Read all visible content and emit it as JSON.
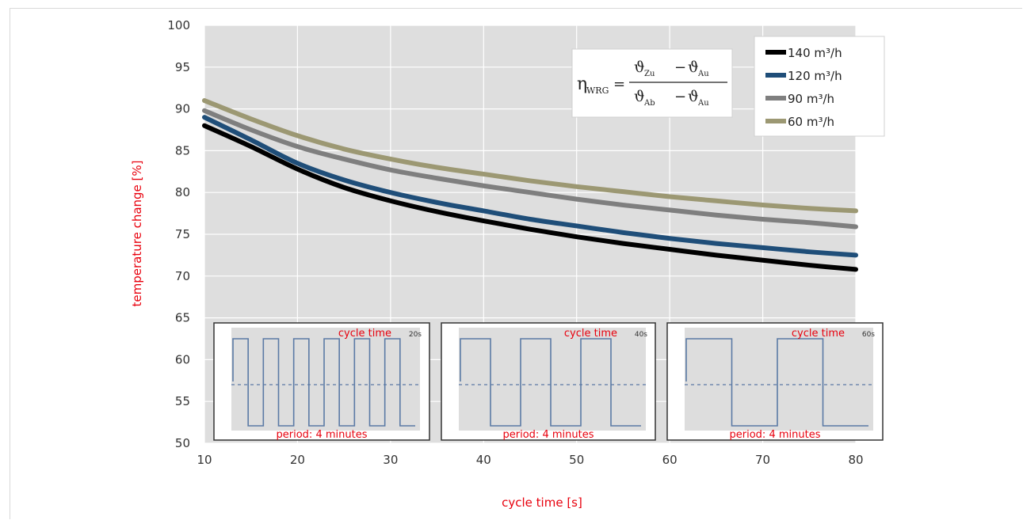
{
  "chart_data": {
    "type": "line",
    "title": "",
    "xlabel": "cycle time  [s]",
    "ylabel": "temperature change  [%]",
    "xlim": [
      10,
      80
    ],
    "ylim": [
      50,
      100
    ],
    "xticks": [
      "10",
      "20",
      "30",
      "40",
      "50",
      "60",
      "70",
      "80"
    ],
    "yticks": [
      "50",
      "55",
      "60",
      "65",
      "70",
      "75",
      "80",
      "85",
      "90",
      "95",
      "100"
    ],
    "grid": true,
    "legend_position": "top-right",
    "x": [
      10,
      15,
      20,
      25,
      30,
      35,
      40,
      45,
      50,
      55,
      60,
      65,
      70,
      75,
      80
    ],
    "series": [
      {
        "name": "140 m³/h",
        "color": "#000000",
        "values": [
          88.0,
          85.5,
          82.8,
          80.6,
          79.0,
          77.7,
          76.6,
          75.6,
          74.7,
          73.9,
          73.2,
          72.5,
          71.9,
          71.3,
          70.8
        ]
      },
      {
        "name": "120 m³/h",
        "color": "#1f4e79",
        "values": [
          89.0,
          86.3,
          83.5,
          81.5,
          80.0,
          78.8,
          77.8,
          76.8,
          76.0,
          75.2,
          74.5,
          73.9,
          73.4,
          72.9,
          72.5
        ]
      },
      {
        "name": "90 m³/h",
        "color": "#7f7f7f",
        "values": [
          89.8,
          87.5,
          85.5,
          84.0,
          82.7,
          81.7,
          80.8,
          80.0,
          79.2,
          78.5,
          77.9,
          77.3,
          76.8,
          76.4,
          75.9
        ]
      },
      {
        "name": "60 m³/h",
        "color": "#9c9873",
        "values": [
          91.0,
          88.8,
          86.8,
          85.2,
          84.0,
          83.0,
          82.2,
          81.4,
          80.7,
          80.1,
          79.5,
          79.0,
          78.5,
          78.1,
          77.8
        ]
      }
    ],
    "formula": {
      "lhs": "η",
      "lhs_sub": "WRG",
      "num_a": "ϑ",
      "num_a_sub": "Zu",
      "num_b": "ϑ",
      "num_b_sub": "Au",
      "den_a": "ϑ",
      "den_a_sub": "Ab",
      "den_b": "ϑ",
      "den_b_sub": "Au"
    },
    "insets": [
      {
        "title": "cycle time",
        "value": "20s",
        "caption": "period: 4 minutes",
        "cycle_s": 20
      },
      {
        "title": "cycle time",
        "value": "40s",
        "caption": "period: 4 minutes",
        "cycle_s": 40
      },
      {
        "title": "cycle time",
        "value": "60s",
        "caption": "period: 4 minutes",
        "cycle_s": 60
      }
    ],
    "colors": {
      "plot_bg": "#dedede",
      "grid": "#ffffff",
      "inset_bg": "#dddddd",
      "inset_line": "#5b7aa5",
      "label_red": "#e8000d"
    }
  }
}
